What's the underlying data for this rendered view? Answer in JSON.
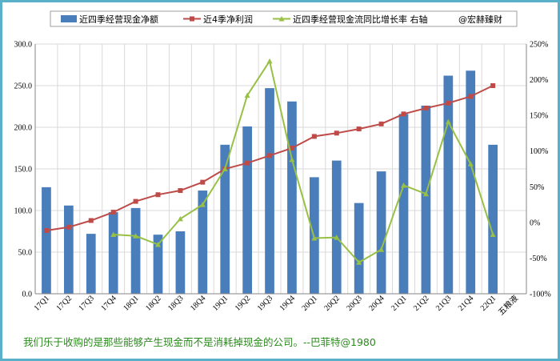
{
  "chart_data": {
    "type": "bar+line",
    "categories": [
      "17Q1",
      "17Q2",
      "17Q3",
      "17Q4",
      "18Q1",
      "18Q2",
      "18Q3",
      "18Q4",
      "19Q1",
      "19Q2",
      "19Q3",
      "19Q4",
      "20Q1",
      "20Q2",
      "20Q3",
      "20Q4",
      "21Q1",
      "21Q2",
      "21Q3",
      "21Q4",
      "22Q1"
    ],
    "extra_category_label": "五粮液",
    "left_axis": {
      "ylim": [
        0,
        300
      ],
      "ticks": [
        "0.0",
        "50.0",
        "100.0",
        "150.0",
        "200.0",
        "250.0",
        "300.0"
      ]
    },
    "right_axis": {
      "ylim": [
        -1.0,
        2.5
      ],
      "ticks": [
        "-100%",
        "-50%",
        "0%",
        "50%",
        "100%",
        "150%",
        "200%",
        "250%"
      ]
    },
    "grid": true,
    "legend_position": "top",
    "series": [
      {
        "name": "近四季经营现金净额",
        "kind": "bar",
        "axis": "left",
        "color": "#4a7ebb",
        "values": [
          128,
          106,
          72,
          98,
          103,
          71,
          75,
          124,
          179,
          201,
          247,
          231,
          140,
          160,
          109,
          147,
          216,
          226,
          262,
          268,
          179
        ]
      },
      {
        "name": "近4季净利润",
        "kind": "line",
        "axis": "left",
        "color": "#be4b48",
        "marker": "square",
        "values": [
          76,
          80,
          88,
          98,
          111,
          119,
          124,
          134,
          150,
          157,
          166,
          175,
          189,
          193,
          198,
          204,
          216,
          223,
          229,
          237,
          250
        ]
      },
      {
        "name": "近四季经营现金流同比增长率 右轴",
        "kind": "line",
        "axis": "right",
        "color": "#98c045",
        "marker": "triangle",
        "values": [
          null,
          null,
          null,
          -0.17,
          -0.19,
          -0.31,
          0.05,
          0.25,
          0.75,
          1.78,
          2.26,
          0.88,
          -0.22,
          -0.21,
          -0.56,
          -0.38,
          0.52,
          0.4,
          1.41,
          0.82,
          -0.17
        ]
      }
    ],
    "annotation": "@宏赫臻财"
  },
  "quote": "我们乐于收购的是那些能够产生现金而不是消耗掉现金的公司。--巴菲特@1980"
}
